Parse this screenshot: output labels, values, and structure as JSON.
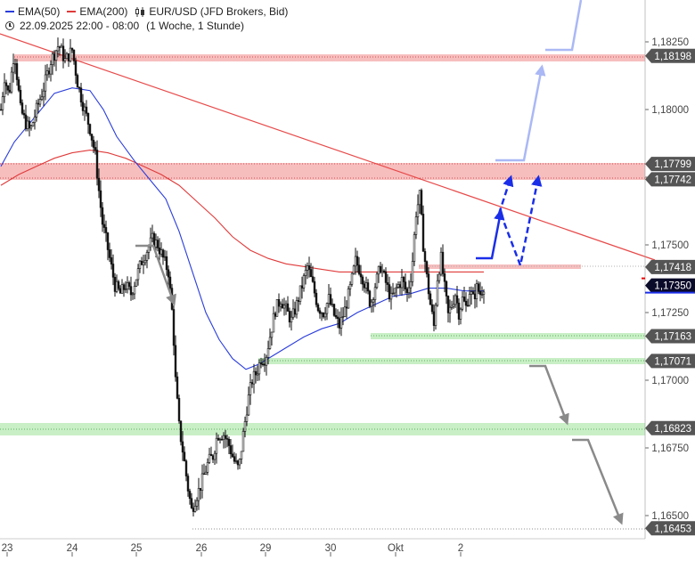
{
  "legend": {
    "ema50_label": "EMA(50)",
    "ema200_label": "EMA(200)",
    "instrument": "EUR/USD (JFD Brokers, Bid)",
    "date_range": "22.09.2025 22:00 - 08:00",
    "period": "(1 Woche, 1 Stunde)"
  },
  "colors": {
    "ema50": "#2a3ddb",
    "ema200": "#e03a3a",
    "resistance_zone": "#f6b3b3",
    "support_zone": "#c9efc6",
    "scenario_up": "#1a2ee8",
    "scenario_up_light": "#aab8f5",
    "scenario_down": "#8a8a8a",
    "trendline": "#e84a4a",
    "price_box_current": "#0a0a2a"
  },
  "chart_data": {
    "type": "candlestick",
    "y_range": [
      1.164,
      1.1836
    ],
    "y_ticks": [
      "1,18250",
      "1,18000",
      "1,17750",
      "1,17500",
      "1,17250",
      "1,17000",
      "1,16750",
      "1,16500"
    ],
    "y_tick_values": [
      1.1825,
      1.18,
      1.1775,
      1.175,
      1.1725,
      1.17,
      1.1675,
      1.165
    ],
    "x_ticks": [
      "23",
      "24",
      "25",
      "26",
      "29",
      "30",
      "Okt",
      "2"
    ],
    "levels": [
      {
        "label": "1,18198",
        "value": 1.18198,
        "kind": "resistance"
      },
      {
        "label": "1,17799",
        "value": 1.17799,
        "kind": "resistance"
      },
      {
        "label": "1,17742",
        "value": 1.17742,
        "kind": "resistance"
      },
      {
        "label": "1,17418",
        "value": 1.17418,
        "kind": "resistance"
      },
      {
        "label": "1,17350",
        "value": 1.1735,
        "kind": "current"
      },
      {
        "label": "1,17163",
        "value": 1.17163,
        "kind": "support"
      },
      {
        "label": "1,17071",
        "value": 1.17071,
        "kind": "support"
      },
      {
        "label": "1,16823",
        "value": 1.16823,
        "kind": "support"
      },
      {
        "label": "1,16453",
        "value": 1.16453,
        "kind": "support"
      }
    ],
    "price_anchors": [
      [
        0,
        1.18
      ],
      [
        4,
        1.1812
      ],
      [
        9,
        1.1805
      ],
      [
        15,
        1.1822
      ],
      [
        22,
        1.18
      ],
      [
        28,
        1.1795
      ],
      [
        33,
        1.1792
      ],
      [
        40,
        1.18
      ],
      [
        48,
        1.1808
      ],
      [
        56,
        1.1818
      ],
      [
        65,
        1.1824
      ],
      [
        72,
        1.1818
      ],
      [
        80,
        1.1822
      ],
      [
        86,
        1.181
      ],
      [
        92,
        1.1802
      ],
      [
        100,
        1.1793
      ],
      [
        106,
        1.1783
      ],
      [
        110,
        1.177
      ],
      [
        114,
        1.1758
      ],
      [
        118,
        1.1752
      ],
      [
        122,
        1.1745
      ],
      [
        128,
        1.1735
      ],
      [
        134,
        1.1732
      ],
      [
        140,
        1.1735
      ],
      [
        146,
        1.1732
      ],
      [
        152,
        1.1738
      ],
      [
        158,
        1.1744
      ],
      [
        164,
        1.1748
      ],
      [
        170,
        1.1752
      ],
      [
        176,
        1.175
      ],
      [
        182,
        1.1745
      ],
      [
        188,
        1.174
      ],
      [
        193,
        1.1722
      ],
      [
        196,
        1.17
      ],
      [
        200,
        1.1683
      ],
      [
        205,
        1.1672
      ],
      [
        210,
        1.166
      ],
      [
        214,
        1.1652
      ],
      [
        218,
        1.1656
      ],
      [
        223,
        1.166
      ],
      [
        228,
        1.1665
      ],
      [
        233,
        1.167
      ],
      [
        238,
        1.1672
      ],
      [
        243,
        1.168
      ],
      [
        250,
        1.168
      ],
      [
        256,
        1.1676
      ],
      [
        262,
        1.167
      ],
      [
        267,
        1.1667
      ],
      [
        272,
        1.168
      ],
      [
        277,
        1.1692
      ],
      [
        282,
        1.17
      ],
      [
        287,
        1.1703
      ],
      [
        292,
        1.1708
      ],
      [
        297,
        1.1708
      ],
      [
        303,
        1.1718
      ],
      [
        308,
        1.1726
      ],
      [
        314,
        1.173
      ],
      [
        320,
        1.1726
      ],
      [
        326,
        1.1722
      ],
      [
        332,
        1.1728
      ],
      [
        338,
        1.1735
      ],
      [
        344,
        1.1742
      ],
      [
        350,
        1.1735
      ],
      [
        356,
        1.1727
      ],
      [
        362,
        1.1725
      ],
      [
        368,
        1.173
      ],
      [
        374,
        1.1724
      ],
      [
        380,
        1.172
      ],
      [
        386,
        1.1726
      ],
      [
        392,
        1.1734
      ],
      [
        398,
        1.1744
      ],
      [
        404,
        1.174
      ],
      [
        410,
        1.1734
      ],
      [
        415,
        1.1728
      ],
      [
        420,
        1.1735
      ],
      [
        426,
        1.1742
      ],
      [
        432,
        1.1736
      ],
      [
        438,
        1.173
      ],
      [
        444,
        1.1734
      ],
      [
        450,
        1.1737
      ],
      [
        456,
        1.1732
      ],
      [
        461,
        1.174
      ],
      [
        466,
        1.1762
      ],
      [
        470,
        1.1768
      ],
      [
        474,
        1.175
      ],
      [
        478,
        1.1738
      ],
      [
        482,
        1.1728
      ],
      [
        486,
        1.172
      ],
      [
        490,
        1.1738
      ],
      [
        494,
        1.1745
      ],
      [
        498,
        1.1734
      ],
      [
        502,
        1.1724
      ],
      [
        506,
        1.1728
      ],
      [
        510,
        1.1732
      ],
      [
        514,
        1.1725
      ],
      [
        518,
        1.173
      ],
      [
        522,
        1.1727
      ],
      [
        526,
        1.1733
      ],
      [
        530,
        1.173
      ],
      [
        534,
        1.1734
      ],
      [
        538,
        1.1732
      ],
      [
        542,
        1.1735
      ]
    ],
    "ema50_anchors": [
      [
        0,
        1.1779
      ],
      [
        15,
        1.1788
      ],
      [
        35,
        1.1796
      ],
      [
        60,
        1.1806
      ],
      [
        80,
        1.1808
      ],
      [
        100,
        1.1807
      ],
      [
        115,
        1.18
      ],
      [
        130,
        1.179
      ],
      [
        150,
        1.1781
      ],
      [
        170,
        1.1773
      ],
      [
        185,
        1.1767
      ],
      [
        200,
        1.1755
      ],
      [
        215,
        1.174
      ],
      [
        230,
        1.1725
      ],
      [
        245,
        1.1715
      ],
      [
        260,
        1.1708
      ],
      [
        275,
        1.1704
      ],
      [
        290,
        1.1706
      ],
      [
        305,
        1.1709
      ],
      [
        320,
        1.1712
      ],
      [
        340,
        1.1716
      ],
      [
        360,
        1.1719
      ],
      [
        380,
        1.1721
      ],
      [
        400,
        1.1725
      ],
      [
        420,
        1.1728
      ],
      [
        440,
        1.1731
      ],
      [
        460,
        1.1732
      ],
      [
        480,
        1.1734
      ],
      [
        500,
        1.1734
      ],
      [
        520,
        1.1733
      ],
      [
        542,
        1.1733
      ]
    ],
    "ema200_anchors": [
      [
        0,
        1.1772
      ],
      [
        20,
        1.1776
      ],
      [
        40,
        1.1779
      ],
      [
        60,
        1.1782
      ],
      [
        80,
        1.1784
      ],
      [
        100,
        1.1785
      ],
      [
        120,
        1.1784
      ],
      [
        140,
        1.1782
      ],
      [
        160,
        1.1779
      ],
      [
        180,
        1.1776
      ],
      [
        200,
        1.1772
      ],
      [
        220,
        1.1766
      ],
      [
        240,
        1.176
      ],
      [
        260,
        1.1753
      ],
      [
        280,
        1.1748
      ],
      [
        300,
        1.1745
      ],
      [
        320,
        1.1743
      ],
      [
        340,
        1.1742
      ],
      [
        360,
        1.1741
      ],
      [
        380,
        1.174
      ],
      [
        400,
        1.174
      ],
      [
        420,
        1.174
      ],
      [
        440,
        1.174
      ],
      [
        460,
        1.174
      ],
      [
        480,
        1.174
      ],
      [
        500,
        1.174
      ],
      [
        520,
        1.174
      ],
      [
        542,
        1.174
      ]
    ]
  }
}
